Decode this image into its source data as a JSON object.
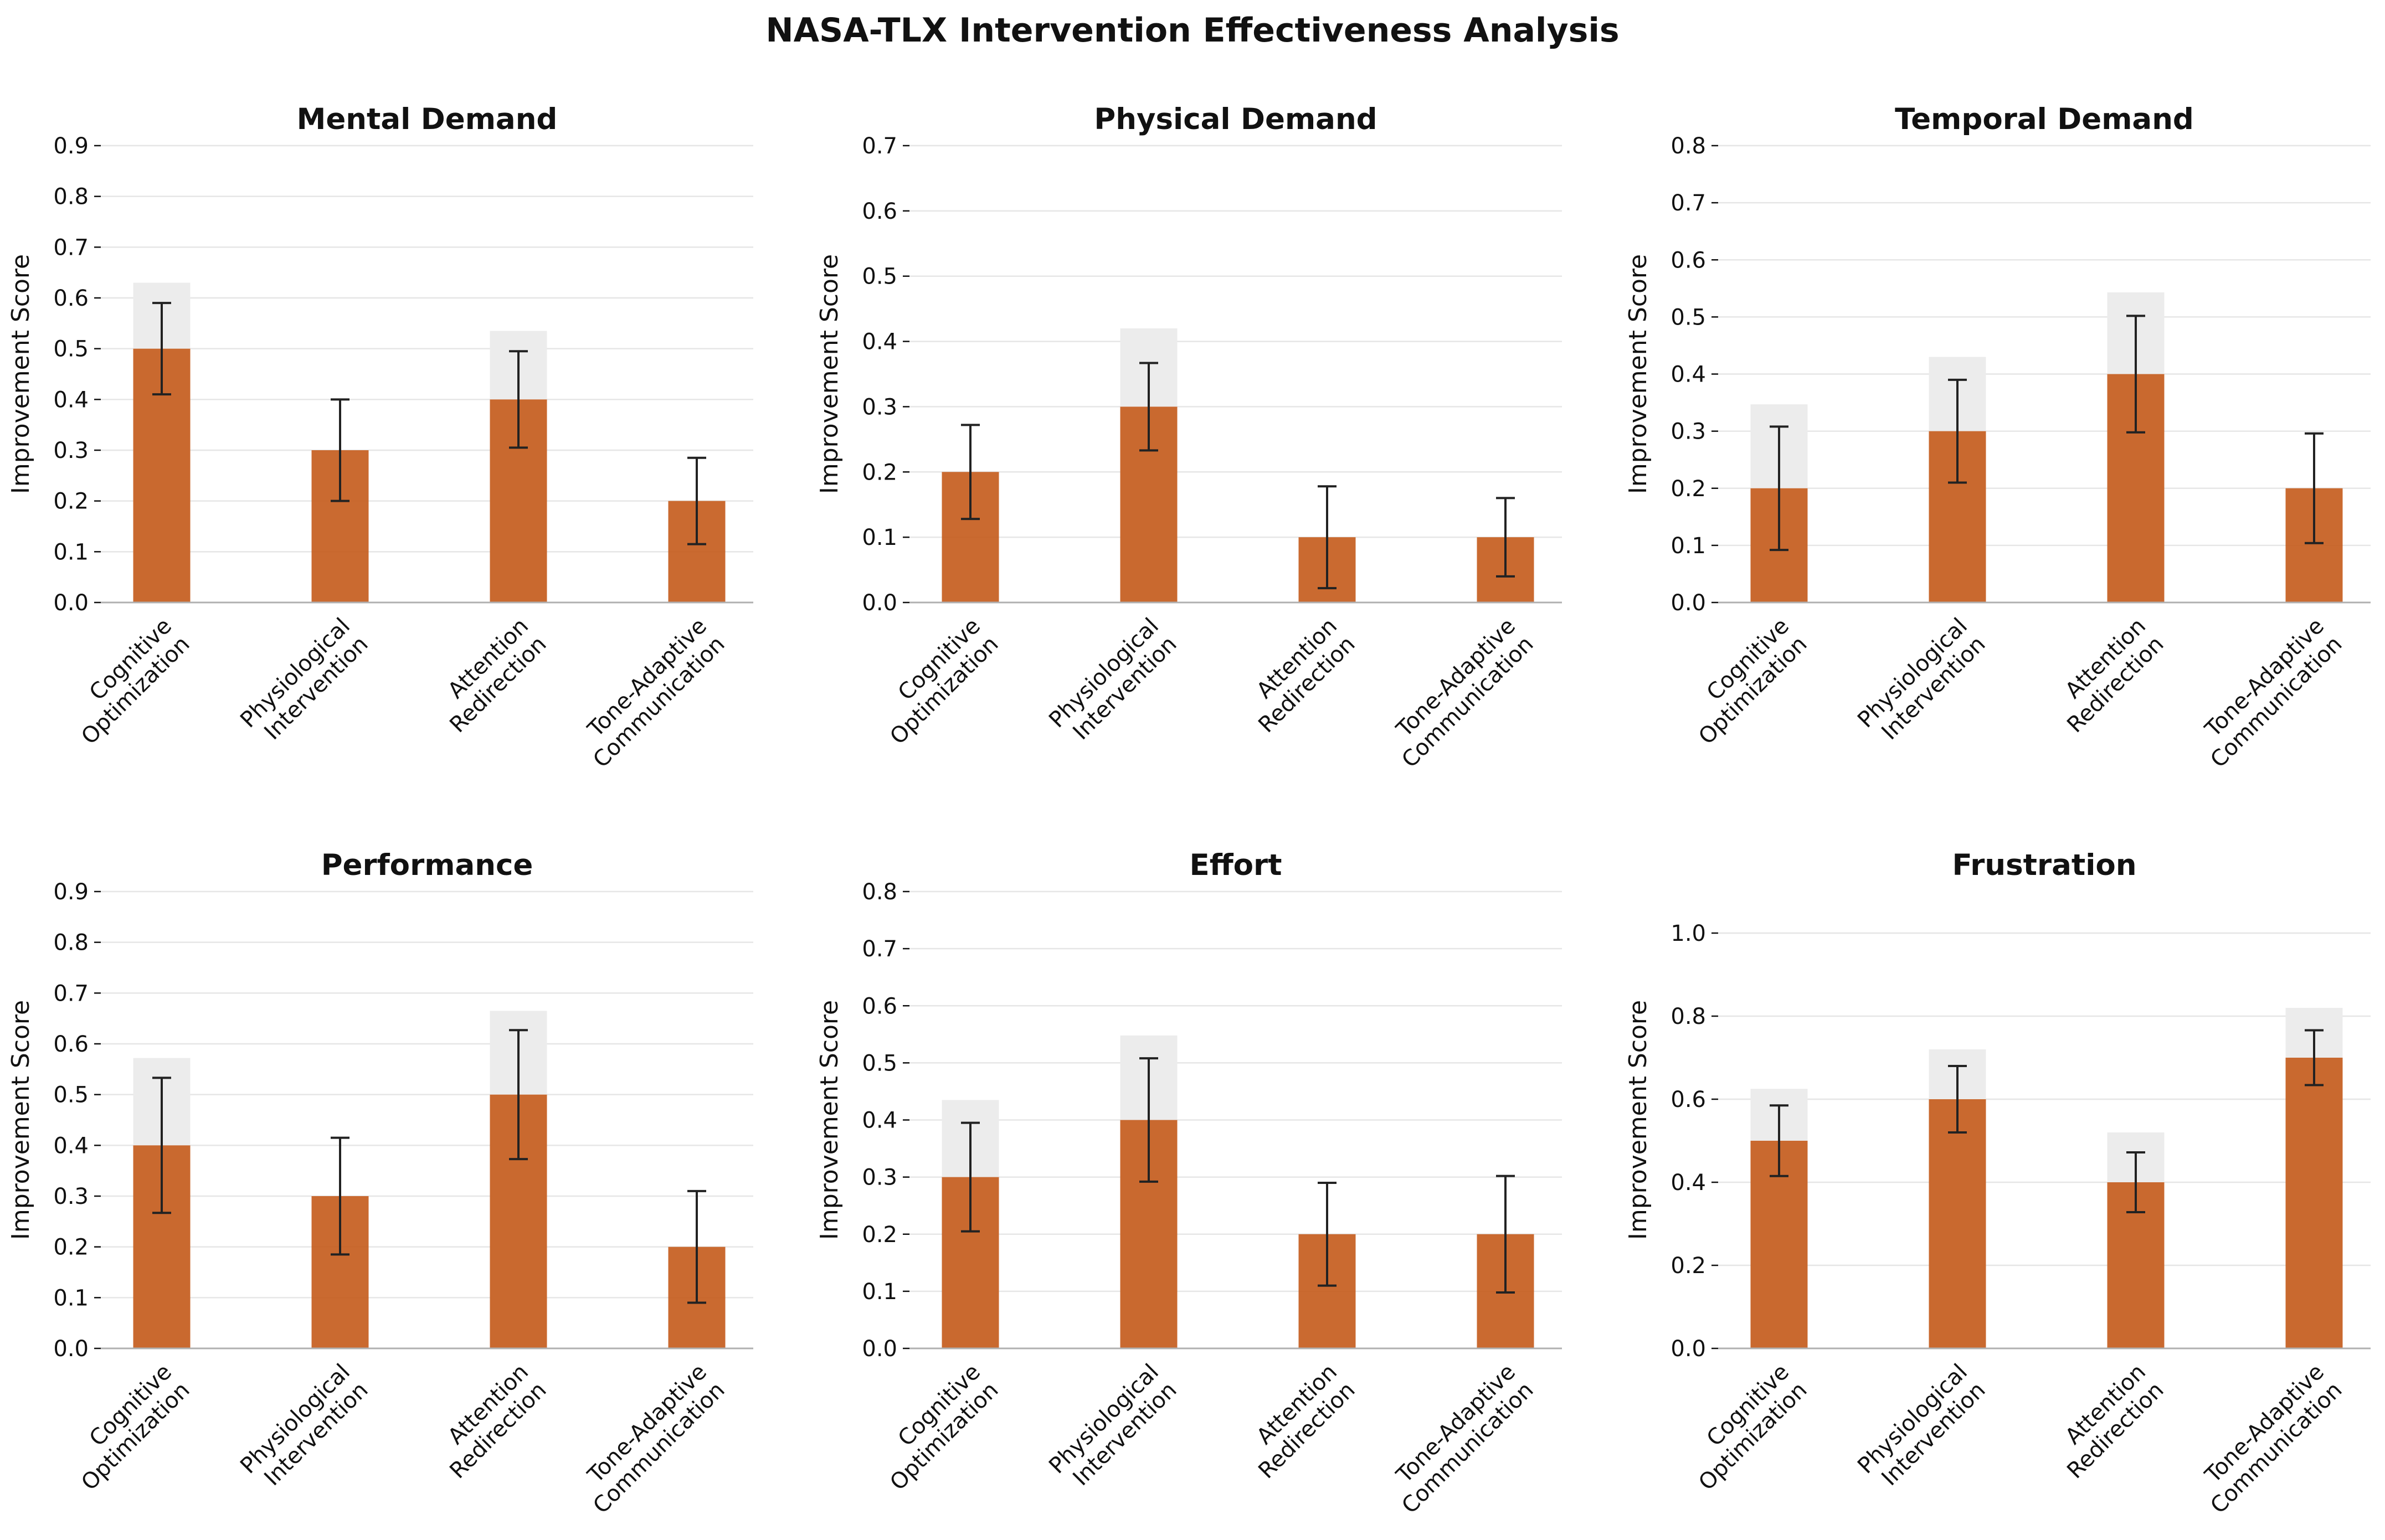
{
  "figure": {
    "title": "NASA-TLX Intervention Effectiveness Analysis"
  },
  "colors": {
    "bar": "#c65d1e",
    "ghost_bar": "#ececec",
    "error_bar": "#222222",
    "grid": "#e6e6e6",
    "axis": "#b0b0b0",
    "text": "#111111"
  },
  "chart_data": [
    {
      "type": "bar",
      "title": "Mental Demand",
      "ylabel": "Improvement Score",
      "categories": [
        [
          "Cognitive",
          "Optimization"
        ],
        [
          "Physiological",
          "Intervention"
        ],
        [
          "Attention",
          "Redirection"
        ],
        [
          "Tone-Adaptive",
          "Communication"
        ]
      ],
      "values": [
        0.5,
        0.3,
        0.4,
        0.2
      ],
      "error": [
        0.09,
        0.1,
        0.095,
        0.085
      ],
      "ghost": [
        0.63,
        0.3,
        0.535,
        0.2
      ],
      "ylim": [
        0,
        0.9
      ],
      "yticks": [
        "0.0",
        "0.1",
        "0.2",
        "0.3",
        "0.4",
        "0.5",
        "0.6",
        "0.7",
        "0.8",
        "0.9"
      ],
      "ytick_values": [
        0,
        0.1,
        0.2,
        0.3,
        0.4,
        0.5,
        0.6,
        0.7,
        0.8,
        0.9
      ]
    },
    {
      "type": "bar",
      "title": "Physical Demand",
      "ylabel": "Improvement Score",
      "categories": [
        [
          "Cognitive",
          "Optimization"
        ],
        [
          "Physiological",
          "Intervention"
        ],
        [
          "Attention",
          "Redirection"
        ],
        [
          "Tone-Adaptive",
          "Communication"
        ]
      ],
      "values": [
        0.2,
        0.3,
        0.1,
        0.1
      ],
      "error": [
        0.072,
        0.067,
        0.078,
        0.06
      ],
      "ghost": [
        0.2,
        0.42,
        0.1,
        0.1
      ],
      "ylim": [
        0,
        0.7
      ],
      "yticks": [
        "0.0",
        "0.1",
        "0.2",
        "0.3",
        "0.4",
        "0.5",
        "0.6",
        "0.7"
      ],
      "ytick_values": [
        0,
        0.1,
        0.2,
        0.3,
        0.4,
        0.5,
        0.6,
        0.7
      ]
    },
    {
      "type": "bar",
      "title": "Temporal Demand",
      "ylabel": "Improvement Score",
      "categories": [
        [
          "Cognitive",
          "Optimization"
        ],
        [
          "Physiological",
          "Intervention"
        ],
        [
          "Attention",
          "Redirection"
        ],
        [
          "Tone-Adaptive",
          "Communication"
        ]
      ],
      "values": [
        0.2,
        0.3,
        0.4,
        0.2
      ],
      "error": [
        0.108,
        0.09,
        0.102,
        0.096
      ],
      "ghost": [
        0.347,
        0.43,
        0.543,
        0.2
      ],
      "ylim": [
        0,
        0.8
      ],
      "yticks": [
        "0.0",
        "0.1",
        "0.2",
        "0.3",
        "0.4",
        "0.5",
        "0.6",
        "0.7",
        "0.8"
      ],
      "ytick_values": [
        0,
        0.1,
        0.2,
        0.3,
        0.4,
        0.5,
        0.6,
        0.7,
        0.8
      ]
    },
    {
      "type": "bar",
      "title": "Performance",
      "ylabel": "Improvement Score",
      "categories": [
        [
          "Cognitive",
          "Optimization"
        ],
        [
          "Physiological",
          "Intervention"
        ],
        [
          "Attention",
          "Redirection"
        ],
        [
          "Tone-Adaptive",
          "Communication"
        ]
      ],
      "values": [
        0.4,
        0.3,
        0.5,
        0.2
      ],
      "error": [
        0.133,
        0.115,
        0.127,
        0.11
      ],
      "ghost": [
        0.572,
        0.3,
        0.665,
        0.2
      ],
      "ylim": [
        0,
        0.9
      ],
      "yticks": [
        "0.0",
        "0.1",
        "0.2",
        "0.3",
        "0.4",
        "0.5",
        "0.6",
        "0.7",
        "0.8",
        "0.9"
      ],
      "ytick_values": [
        0,
        0.1,
        0.2,
        0.3,
        0.4,
        0.5,
        0.6,
        0.7,
        0.8,
        0.9
      ]
    },
    {
      "type": "bar",
      "title": "Effort",
      "ylabel": "Improvement Score",
      "categories": [
        [
          "Cognitive",
          "Optimization"
        ],
        [
          "Physiological",
          "Intervention"
        ],
        [
          "Attention",
          "Redirection"
        ],
        [
          "Tone-Adaptive",
          "Communication"
        ]
      ],
      "values": [
        0.3,
        0.4,
        0.2,
        0.2
      ],
      "error": [
        0.095,
        0.108,
        0.09,
        0.102
      ],
      "ghost": [
        0.435,
        0.548,
        0.2,
        0.2
      ],
      "ylim": [
        0,
        0.8
      ],
      "yticks": [
        "0.0",
        "0.1",
        "0.2",
        "0.3",
        "0.4",
        "0.5",
        "0.6",
        "0.7",
        "0.8"
      ],
      "ytick_values": [
        0,
        0.1,
        0.2,
        0.3,
        0.4,
        0.5,
        0.6,
        0.7,
        0.8
      ]
    },
    {
      "type": "bar",
      "title": "Frustration",
      "ylabel": "Improvement Score",
      "categories": [
        [
          "Cognitive",
          "Optimization"
        ],
        [
          "Physiological",
          "Intervention"
        ],
        [
          "Attention",
          "Redirection"
        ],
        [
          "Tone-Adaptive",
          "Communication"
        ]
      ],
      "values": [
        0.5,
        0.6,
        0.4,
        0.7
      ],
      "error": [
        0.085,
        0.08,
        0.072,
        0.066
      ],
      "ghost": [
        0.625,
        0.72,
        0.52,
        0.82
      ],
      "ylim": [
        0,
        1.1
      ],
      "yticks": [
        "0.0",
        "0.2",
        "0.4",
        "0.6",
        "0.8",
        "1.0"
      ],
      "ytick_values": [
        0,
        0.2,
        0.4,
        0.6,
        0.8,
        1.0
      ]
    }
  ]
}
